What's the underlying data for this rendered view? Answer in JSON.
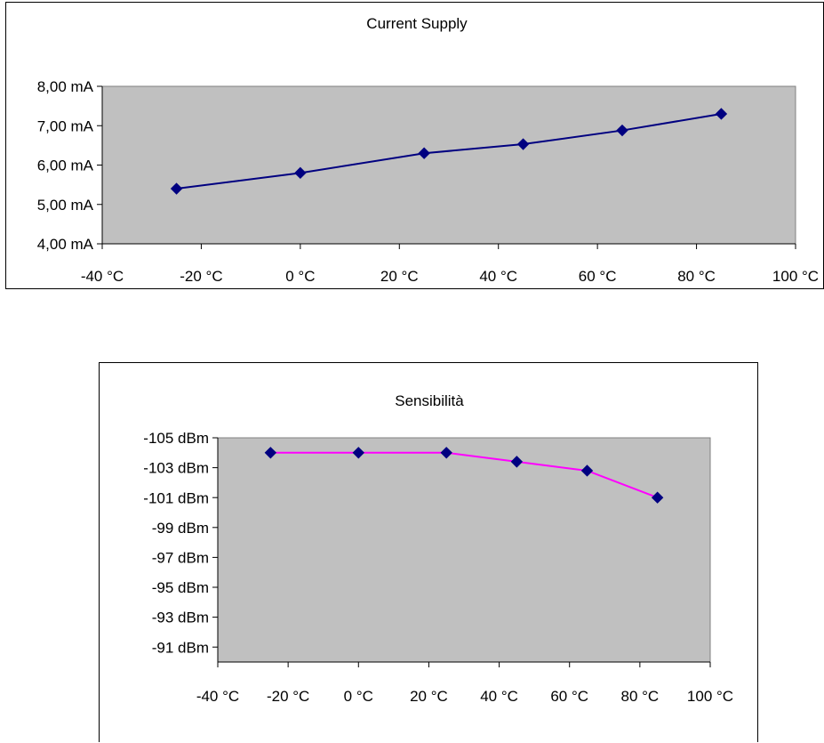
{
  "chart_data": [
    {
      "type": "line",
      "title": "Current Supply",
      "x": [
        -25,
        0,
        25,
        45,
        65,
        85
      ],
      "series": [
        {
          "values": [
            5.4,
            5.8,
            6.3,
            6.53,
            6.88,
            7.3
          ],
          "color": "#000080",
          "marker_color": "#000080"
        }
      ],
      "xlim": [
        -40,
        100
      ],
      "ylim": [
        4,
        8
      ],
      "x_ticks": [
        -40,
        -20,
        0,
        20,
        40,
        60,
        80,
        100
      ],
      "x_tick_labels": [
        "-40 °C",
        "-20 °C",
        "0 °C",
        "20 °C",
        "40 °C",
        "60 °C",
        "80 °C",
        "100 °C"
      ],
      "y_ticks": [
        4,
        5,
        6,
        7,
        8
      ],
      "y_tick_labels": [
        "4,00 mA",
        "5,00 mA",
        "6,00 mA",
        "7,00 mA",
        "8,00 mA"
      ],
      "xlabel": "",
      "ylabel": "",
      "grid": false,
      "plot_background": "#c0c0c0"
    },
    {
      "type": "line",
      "title": "Sensibilità",
      "x": [
        -25,
        0,
        25,
        45,
        65,
        85
      ],
      "series": [
        {
          "values": [
            -104,
            -104,
            -104,
            -103.4,
            -102.8,
            -101
          ],
          "color": "#ff00ff",
          "marker_color": "#000080"
        }
      ],
      "xlim": [
        -40,
        100
      ],
      "ylim": [
        -105,
        -90
      ],
      "y_reversed": true,
      "x_ticks": [
        -40,
        -20,
        0,
        20,
        40,
        60,
        80,
        100
      ],
      "x_tick_labels": [
        "-40 °C",
        "-20 °C",
        "0 °C",
        "20 °C",
        "40 °C",
        "60 °C",
        "80 °C",
        "100 °C"
      ],
      "y_ticks": [
        -105,
        -103,
        -101,
        -99,
        -97,
        -95,
        -93,
        -91
      ],
      "y_tick_labels": [
        "-105 dBm",
        "-103 dBm",
        "-101 dBm",
        "-99 dBm",
        "-97 dBm",
        "-95 dBm",
        "-93 dBm",
        "-91 dBm"
      ],
      "xlabel": "",
      "ylabel": "",
      "grid": false,
      "plot_background": "#c0c0c0"
    }
  ]
}
